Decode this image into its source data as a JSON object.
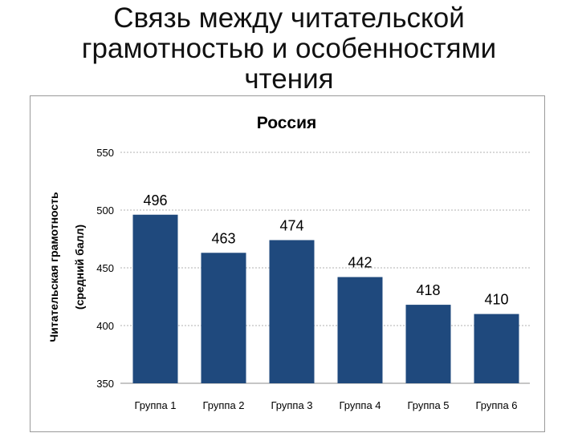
{
  "slide": {
    "title": "Связь между читательской\nграмотностью  и особенностями\nчтения"
  },
  "chart_data": {
    "type": "bar",
    "title": "Россия",
    "xlabel": "",
    "ylabel": "Читательская грамотность",
    "ylabel2": "(средний балл)",
    "categories": [
      "Группа 1",
      "Группа 2",
      "Группа 3",
      "Группа 4",
      "Группа 5",
      "Группа 6"
    ],
    "values": [
      496,
      463,
      474,
      442,
      418,
      410
    ],
    "value_labels": [
      "496",
      "463",
      "474",
      "442",
      "418",
      "410"
    ],
    "ylim": [
      350,
      550
    ],
    "yticks": [
      350,
      400,
      450,
      500,
      550
    ],
    "ytick_labels": [
      "350",
      "400",
      "450",
      "500",
      "550"
    ],
    "grid": true,
    "bar_color": "#1f497d"
  }
}
